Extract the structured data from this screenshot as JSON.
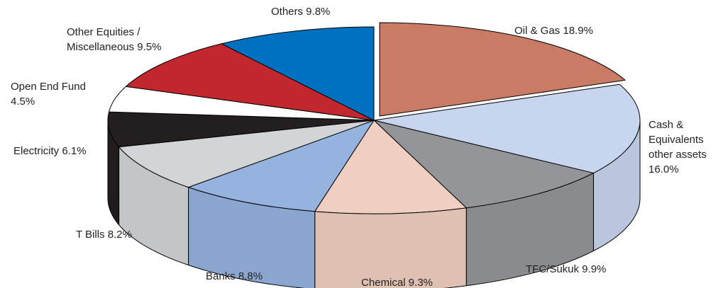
{
  "chart_data": {
    "type": "pie",
    "style": "3d-exploded-tilted",
    "title": "",
    "slices": [
      {
        "key": "oil-gas",
        "label": "Oil & Gas 18.9%",
        "lines": [
          "Oil & Gas 18.9%"
        ],
        "value": 18.9,
        "color": "#C97B65"
      },
      {
        "key": "cash-equivalents",
        "label": "Cash & Equivalents other assets 16.0%",
        "lines": [
          "Cash &",
          "Equivalents",
          "other assets",
          "16.0%"
        ],
        "value": 16.0,
        "color": "#C7D5EE"
      },
      {
        "key": "tfc-sukuk",
        "label": "TFC/Sukuk 9.9%",
        "lines": [
          "TFC/Sukuk 9.9%"
        ],
        "value": 9.9,
        "color": "#939598"
      },
      {
        "key": "chemical",
        "label": "Chemical 9.3%",
        "lines": [
          "Chemical 9.3%"
        ],
        "value": 9.3,
        "color": "#F0CFC2"
      },
      {
        "key": "banks",
        "label": "Banks 8.8%",
        "lines": [
          "Banks 8.8%"
        ],
        "value": 8.8,
        "color": "#95B3DE"
      },
      {
        "key": "t-bills",
        "label": "T Bills 8.2%",
        "lines": [
          "T Bills 8.2%"
        ],
        "value": 8.2,
        "color": "#D3D4D6"
      },
      {
        "key": "electricity",
        "label": "Electricity 6.1%",
        "lines": [
          "Electricity 6.1%"
        ],
        "value": 6.1,
        "color": "#231F20"
      },
      {
        "key": "open-end-fund",
        "label": "Open End Fund 4.5%",
        "lines": [
          "Open End Fund",
          "4.5%"
        ],
        "value": 4.5,
        "color": "#FFFFFF"
      },
      {
        "key": "other-equities",
        "label": "Other Equities / Miscellaneous 9.5%",
        "lines": [
          "Other Equities /",
          "Miscellaneous 9.5%"
        ],
        "value": 9.5,
        "color": "#C1272D"
      },
      {
        "key": "others",
        "label": "Others 9.8%",
        "lines": [
          "Others 9.8%"
        ],
        "value": 9.8,
        "color": "#0070C0"
      }
    ]
  }
}
